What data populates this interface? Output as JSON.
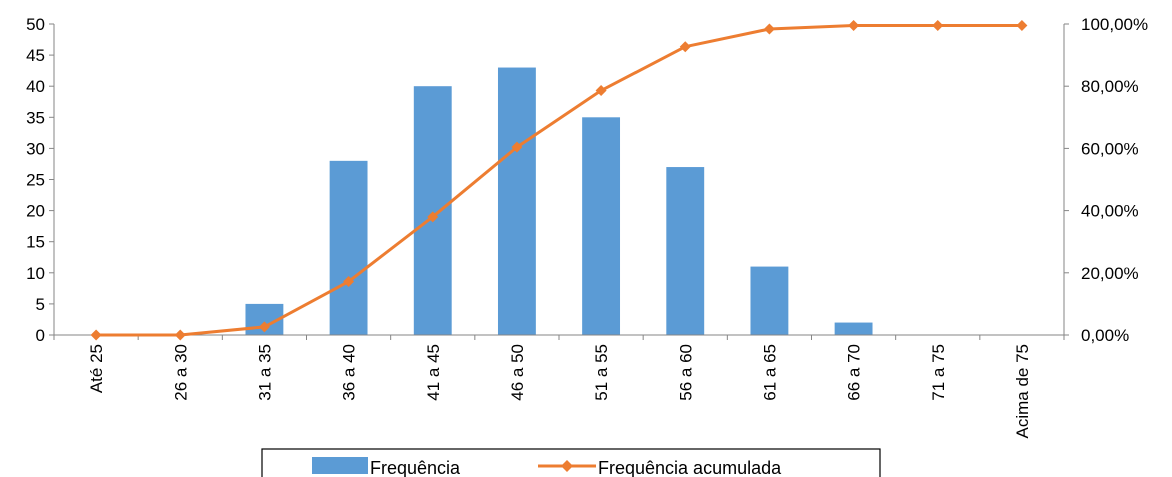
{
  "chart_data": {
    "type": "bar+line",
    "categories": [
      "Até 25",
      "26 a 30",
      "31 a 35",
      "36 a 40",
      "41 a 45",
      "46 a 50",
      "51 a 55",
      "56 a 60",
      "61 a 65",
      "66 a 70",
      "71 a 75",
      "Acima de 75"
    ],
    "series": [
      {
        "name": "Frequência",
        "type": "bar",
        "axis": "left",
        "color": "#5B9BD5",
        "values": [
          0,
          0,
          5,
          28,
          40,
          43,
          35,
          27,
          11,
          2,
          0,
          0
        ]
      },
      {
        "name": "Frequência acumulada",
        "type": "line",
        "axis": "right",
        "color": "#ED7D31",
        "marker": "diamond",
        "values": [
          0,
          0,
          2.6,
          17.2,
          38.0,
          60.4,
          78.6,
          92.7,
          98.4,
          99.5,
          99.5,
          99.5
        ]
      }
    ],
    "y_left": {
      "min": 0,
      "max": 50,
      "step": 5,
      "ticks": [
        "0",
        "5",
        "10",
        "15",
        "20",
        "25",
        "30",
        "35",
        "40",
        "45",
        "50"
      ]
    },
    "y_right": {
      "min": 0,
      "max": 100,
      "step": 20,
      "ticks": [
        "0,00%",
        "20,00%",
        "40,00%",
        "60,00%",
        "80,00%",
        "100,00%"
      ]
    },
    "grid": false,
    "legend_position": "bottom",
    "title": "",
    "xlabel": "",
    "ylabel": ""
  }
}
